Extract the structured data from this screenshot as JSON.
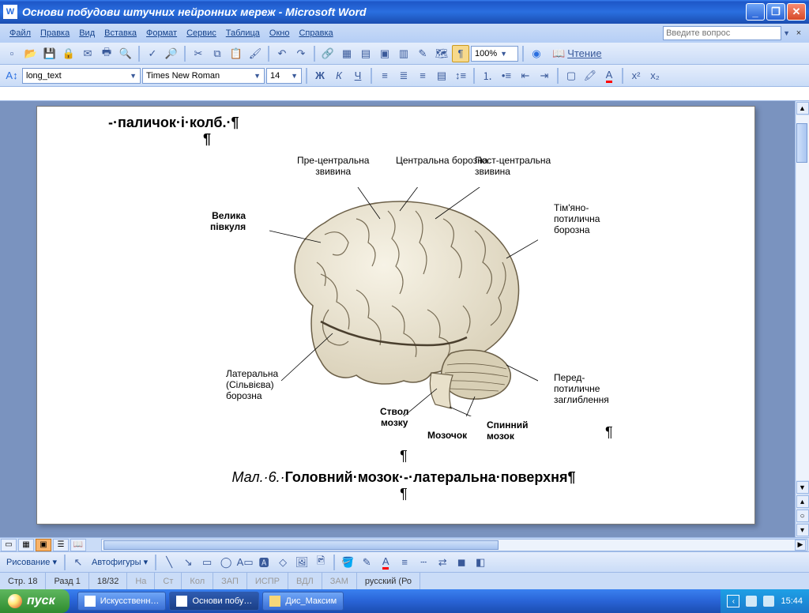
{
  "titlebar": {
    "title": "Основи побудови штучних нейронних мереж - Microsoft Word"
  },
  "menu": {
    "items": [
      "Файл",
      "Правка",
      "Вид",
      "Вставка",
      "Формат",
      "Сервис",
      "Таблица",
      "Окно",
      "Справка"
    ],
    "help_placeholder": "Введите вопрос"
  },
  "toolbar1": {
    "zoom": "100%",
    "reading": "Чтение"
  },
  "toolbar2": {
    "style": "long_text",
    "font": "Times New Roman",
    "size": "14"
  },
  "document": {
    "top_text": "-·паличок·і·колб.·¶",
    "pilcrow": "¶",
    "caption_prefix": "Мал.·6.·",
    "caption_bold": "Головний·мозок·-·латеральна·поверхня¶",
    "brain_labels": {
      "central_sulcus": "Центральна борозна",
      "precentral": "Пре-центральна\nзвивина",
      "postcentral": "Пост-центральна\nзвивина",
      "hemisphere": "Велика\nпівкуля",
      "parieto": "Тім'яно-\nпотилична\nборозна",
      "lateral": "Латеральна\n(Сільвієва)\nборозна",
      "brainstem": "Ствол\nмозку",
      "cerebellum": "Мозочок",
      "spinal": "Спинний\nмозок",
      "preoccipital": "Перед-\nпотиличне\nзаглиблення"
    }
  },
  "drawbar": {
    "drawing": "Рисование",
    "autoshapes": "Автофигуры"
  },
  "statusbar": {
    "page": "Стр. 18",
    "section": "Разд 1",
    "pages": "18/32",
    "at": "На",
    "line": "Ст",
    "col": "Кол",
    "caps": "ЗАП",
    "track": "ИСПР",
    "ext": "ВДЛ",
    "ovr": "ЗАМ",
    "lang": "русский (Ро"
  },
  "taskbar": {
    "start": "пуск",
    "tasks": [
      "Искусственн…",
      "Основи побу…",
      "Дис_Максим"
    ],
    "clock": "15:44"
  },
  "colors": {
    "brain_fill": "#efe9d7",
    "brain_stroke": "#6b5f47",
    "cerebellum_fill": "#d8cfb5"
  }
}
